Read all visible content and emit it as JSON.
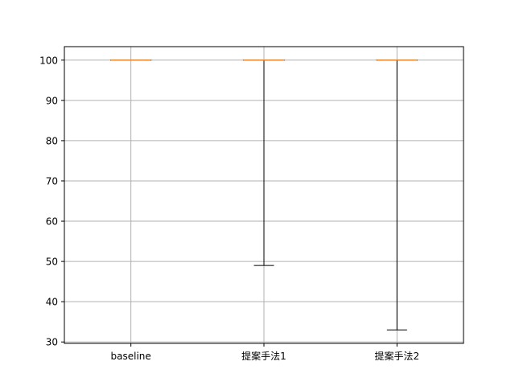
{
  "chart_data": {
    "type": "box",
    "title": "",
    "xlabel": "",
    "ylabel": "",
    "categories": [
      "baseline",
      "提案手法1",
      "提案手法2"
    ],
    "series": [
      {
        "category": "baseline",
        "min": 100,
        "q1": 100,
        "median": 100,
        "q3": 100,
        "max": 100
      },
      {
        "category": "提案手法1",
        "min": 49,
        "q1": 100,
        "median": 100,
        "q3": 100,
        "max": 100
      },
      {
        "category": "提案手法2",
        "min": 33,
        "q1": 100,
        "median": 100,
        "q3": 100,
        "max": 100
      }
    ],
    "ylim": [
      29.65,
      103.35
    ],
    "yticks": [
      30,
      40,
      50,
      60,
      70,
      80,
      90,
      100
    ],
    "grid": true,
    "colors": {
      "median": "#ff7f0e",
      "box": "#000000",
      "grid": "#b0b0b0"
    }
  }
}
